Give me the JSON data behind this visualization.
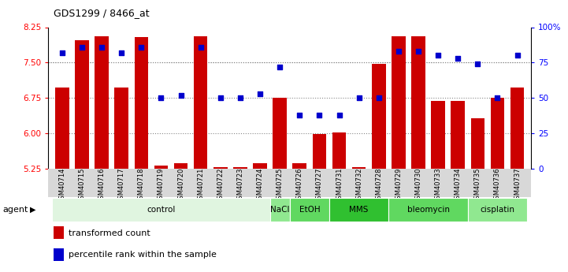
{
  "title": "GDS1299 / 8466_at",
  "samples": [
    "GSM40714",
    "GSM40715",
    "GSM40716",
    "GSM40717",
    "GSM40718",
    "GSM40719",
    "GSM40720",
    "GSM40721",
    "GSM40722",
    "GSM40723",
    "GSM40724",
    "GSM40725",
    "GSM40726",
    "GSM40727",
    "GSM40731",
    "GSM40732",
    "GSM40728",
    "GSM40729",
    "GSM40730",
    "GSM40733",
    "GSM40734",
    "GSM40735",
    "GSM40736",
    "GSM40737"
  ],
  "red_values": [
    6.97,
    7.98,
    8.06,
    6.97,
    8.04,
    5.32,
    5.37,
    8.06,
    5.28,
    5.28,
    5.37,
    6.75,
    5.37,
    5.98,
    6.01,
    5.29,
    7.47,
    8.06,
    8.06,
    6.68,
    6.68,
    6.32,
    6.75,
    6.97
  ],
  "blue_values": [
    82,
    86,
    86,
    82,
    86,
    50,
    52,
    86,
    50,
    50,
    53,
    72,
    38,
    38,
    38,
    50,
    50,
    83,
    83,
    80,
    78,
    74,
    50,
    80
  ],
  "agents": [
    {
      "label": "control",
      "start": 0,
      "end": 11,
      "color": "#e0f5e0"
    },
    {
      "label": "NaCl",
      "start": 11,
      "end": 12,
      "color": "#90e890"
    },
    {
      "label": "EtOH",
      "start": 12,
      "end": 14,
      "color": "#60d860"
    },
    {
      "label": "MMS",
      "start": 14,
      "end": 17,
      "color": "#30c030"
    },
    {
      "label": "bleomycin",
      "start": 17,
      "end": 21,
      "color": "#60d860"
    },
    {
      "label": "cisplatin",
      "start": 21,
      "end": 24,
      "color": "#90e890"
    }
  ],
  "ylim_left": [
    5.25,
    8.25
  ],
  "ylim_right": [
    0,
    100
  ],
  "yticks_left": [
    5.25,
    6.0,
    6.75,
    7.5,
    8.25
  ],
  "yticks_right": [
    0,
    25,
    50,
    75,
    100
  ],
  "ytick_labels_right": [
    "0",
    "25",
    "50",
    "75",
    "100%"
  ],
  "grid_lines": [
    6.0,
    6.75,
    7.5
  ],
  "bar_bottom": 5.25,
  "bar_color": "#cc0000",
  "dot_color": "#0000cc",
  "legend_red": "transformed count",
  "legend_blue": "percentile rank within the sample"
}
